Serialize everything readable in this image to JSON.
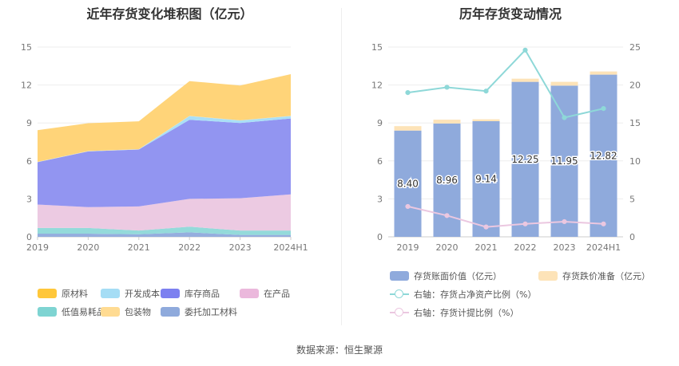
{
  "source": "数据来源：恒生聚源",
  "chart_data": [
    {
      "type": "area",
      "title": "近年存货变化堆积图（亿元）",
      "categories": [
        "2019",
        "2020",
        "2021",
        "2022",
        "2023",
        "2024H1"
      ],
      "ylim": [
        0,
        15
      ],
      "yticks": [
        "0",
        "3",
        "6",
        "9",
        "12",
        "15"
      ],
      "grid": true,
      "legend_position": "bottom",
      "series": [
        {
          "name": "委托加工材料",
          "color": "#8FAADC",
          "values": [
            0.25,
            0.25,
            0.2,
            0.35,
            0.15,
            0.15
          ]
        },
        {
          "name": "低值易耗品",
          "color": "#8ED8D8",
          "values": [
            0.45,
            0.45,
            0.3,
            0.45,
            0.35,
            0.35
          ]
        },
        {
          "name": "在产品",
          "color": "#EBC7E0",
          "values": [
            1.85,
            1.65,
            1.9,
            2.2,
            2.55,
            2.85
          ]
        },
        {
          "name": "库存商品",
          "color": "#8C8FF0",
          "values": [
            3.35,
            4.4,
            4.5,
            6.25,
            5.95,
            6.0
          ]
        },
        {
          "name": "开发成本",
          "color": "#A5DDF5",
          "values": [
            0.02,
            0.02,
            0.02,
            0.3,
            0.2,
            0.2
          ]
        },
        {
          "name": "包装物",
          "color": "#FFE0A0",
          "values": [
            0.01,
            0.01,
            0.01,
            0.01,
            0.01,
            0.01
          ]
        },
        {
          "name": "原材料",
          "color": "#FFD272",
          "values": [
            2.5,
            2.2,
            2.2,
            2.75,
            2.75,
            3.3
          ]
        }
      ],
      "legend": [
        {
          "name": "原材料",
          "color": "#FFC73A"
        },
        {
          "name": "开发成本",
          "color": "#A5DDF5"
        },
        {
          "name": "库存商品",
          "color": "#7C80F0"
        },
        {
          "name": "在产品",
          "color": "#EBB8DC"
        },
        {
          "name": "低值易耗品",
          "color": "#7ED4D2"
        },
        {
          "name": "包装物",
          "color": "#FFDB92"
        },
        {
          "name": "委托加工材料",
          "color": "#8FAADC"
        }
      ]
    },
    {
      "type": "bar",
      "title": "历年存货变动情况",
      "categories": [
        "2019",
        "2020",
        "2021",
        "2022",
        "2023",
        "2024H1"
      ],
      "ylim": [
        0,
        15
      ],
      "yticks": [
        "0",
        "3",
        "6",
        "9",
        "12",
        "15"
      ],
      "y2lim": [
        0,
        25
      ],
      "y2ticks": [
        "0",
        "5",
        "10",
        "15",
        "20",
        "25"
      ],
      "grid": true,
      "legend_position": "bottom",
      "series": [
        {
          "name": "存货账面价值（亿元）",
          "kind": "bar",
          "axis": "left",
          "color": "#8FAADC",
          "values": [
            8.4,
            8.96,
            9.14,
            12.25,
            11.95,
            12.82
          ],
          "labels": [
            "8.40",
            "8.96",
            "9.14",
            "12.25",
            "11.95",
            "12.82"
          ]
        },
        {
          "name": "存货跌价准备（亿元）",
          "kind": "bar-stack",
          "axis": "left",
          "color": "#FDE3B8",
          "values": [
            0.35,
            0.3,
            0.15,
            0.25,
            0.3,
            0.25
          ]
        },
        {
          "name": "右轴：存货占净资产比例（%）",
          "kind": "line",
          "axis": "right",
          "color": "#8ED8D8",
          "values": [
            19.0,
            19.7,
            19.2,
            24.6,
            15.7,
            16.9
          ]
        },
        {
          "name": "右轴：存货计提比例（%）",
          "kind": "line",
          "axis": "right",
          "color": "#EBC7E0",
          "values": [
            4.0,
            2.8,
            1.3,
            1.7,
            2.0,
            1.7
          ]
        }
      ]
    }
  ]
}
